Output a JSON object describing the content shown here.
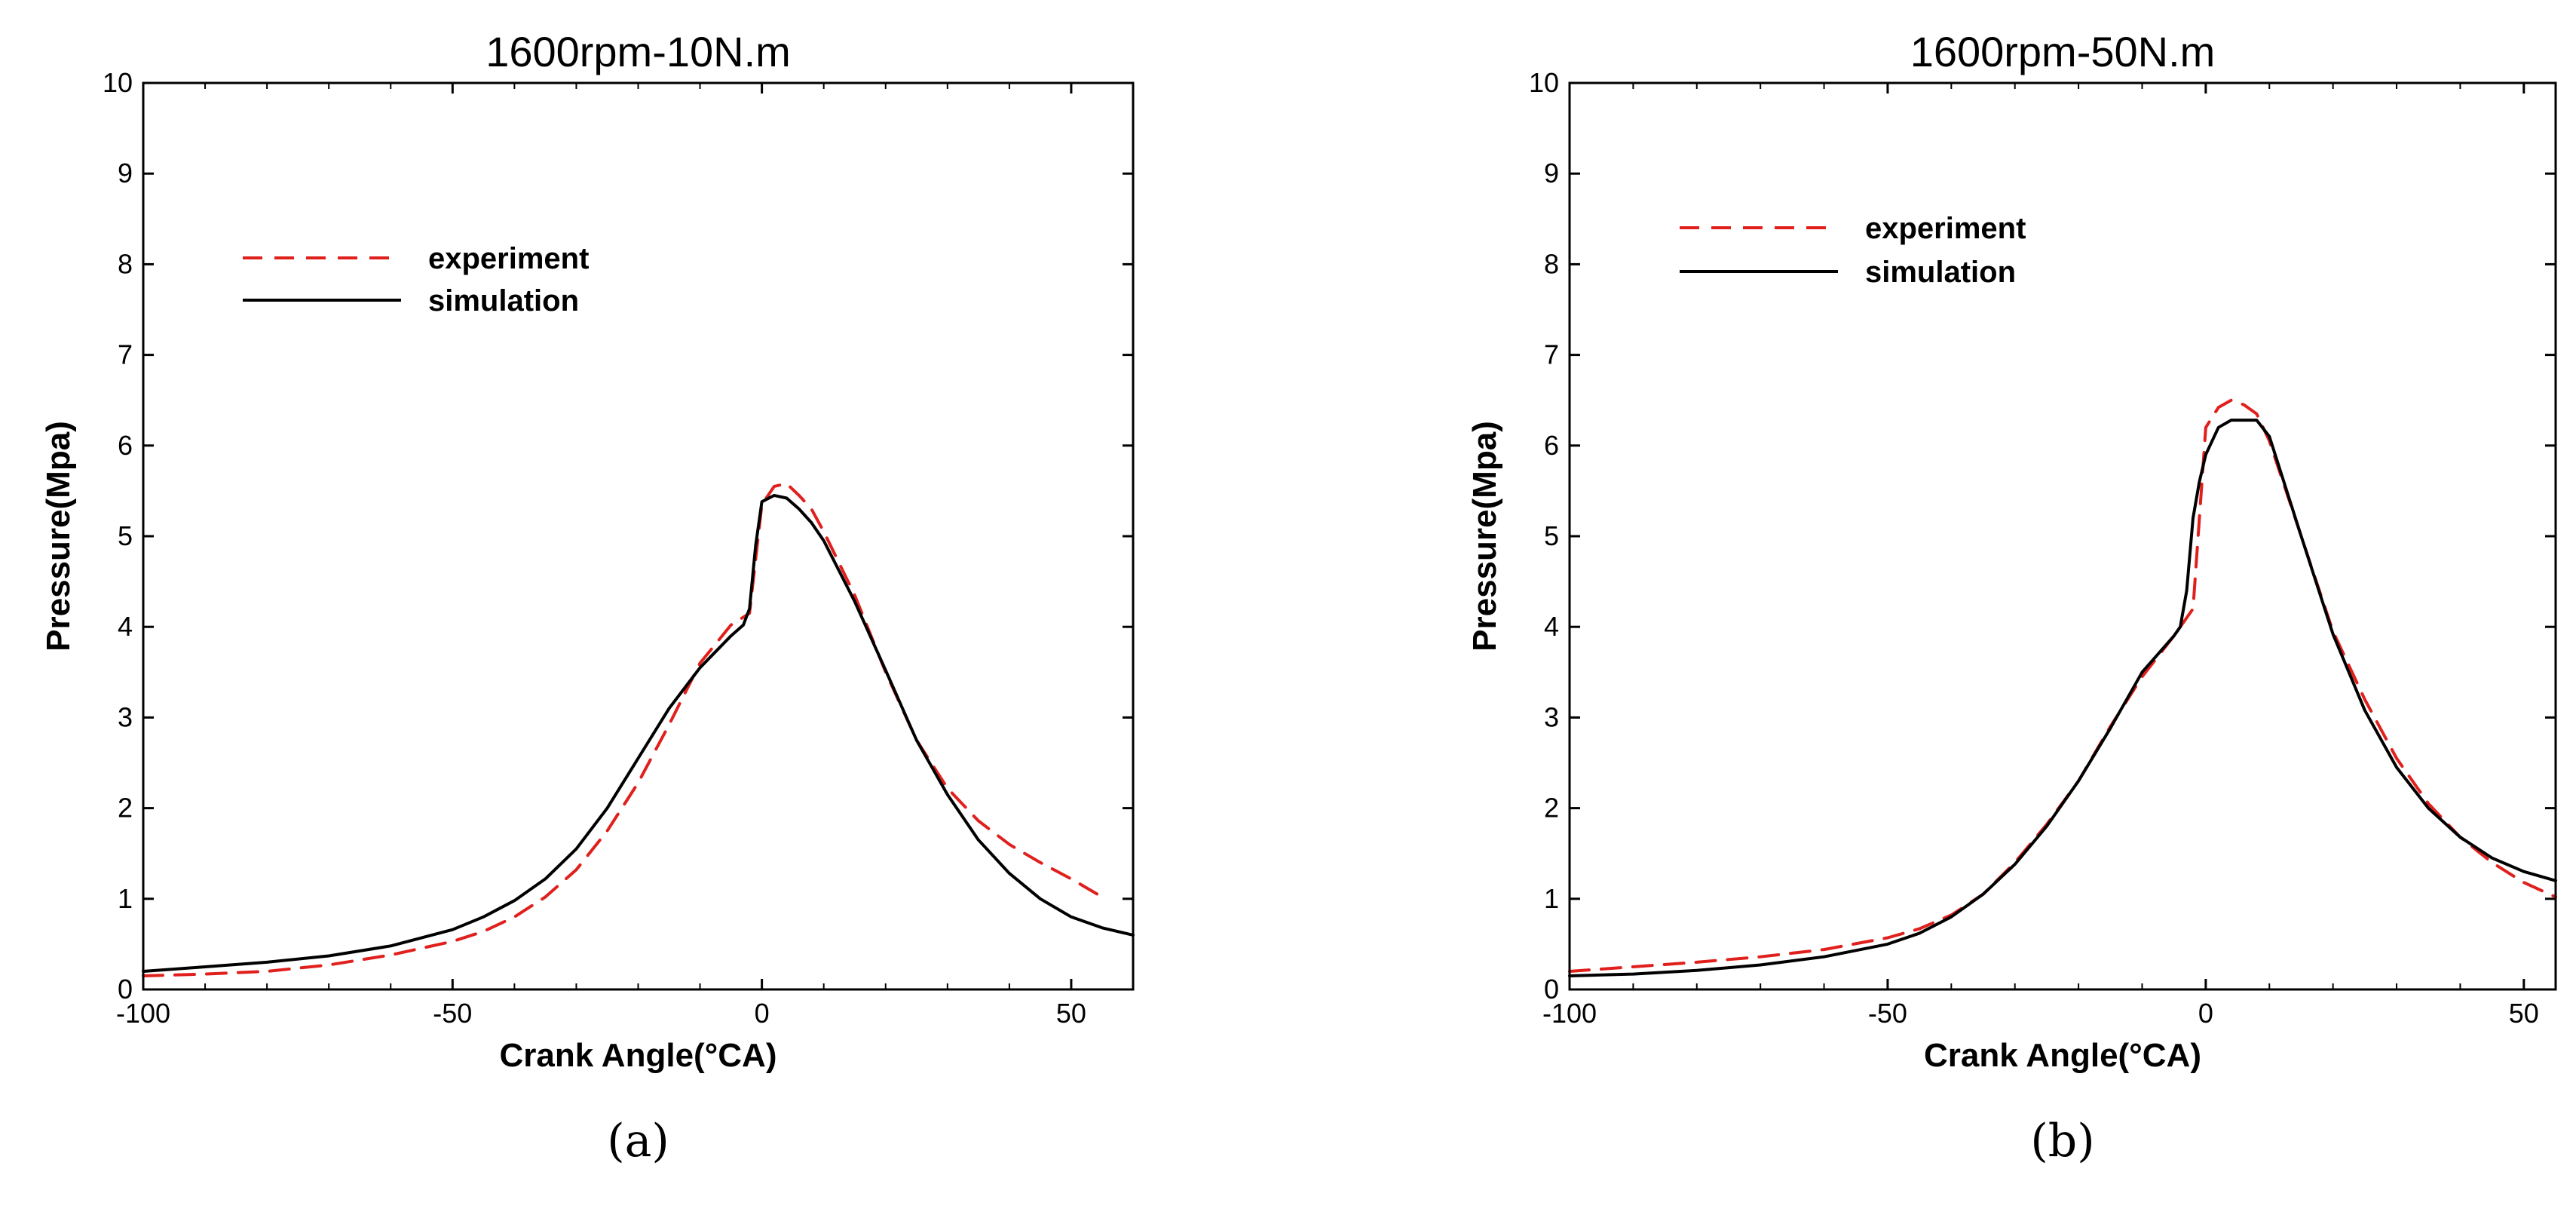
{
  "chart_data": [
    {
      "type": "line",
      "title": "1600rpm-10N.m",
      "caption": "(a)",
      "xlabel": "Crank Angle(°CA)",
      "ylabel": "Pressure(Mpa)",
      "xlim": [
        -100,
        60
      ],
      "ylim": [
        0,
        10
      ],
      "xticks": [
        -100,
        -50,
        0,
        50
      ],
      "yticks": [
        0,
        1,
        2,
        3,
        4,
        5,
        6,
        7,
        8,
        9,
        10
      ],
      "legend_position": "upper-left",
      "series": [
        {
          "name": "experiment",
          "color": "#e0201c",
          "style": "dashed",
          "x": [
            -100,
            -90,
            -80,
            -70,
            -60,
            -50,
            -45,
            -40,
            -35,
            -30,
            -25,
            -20,
            -15,
            -10,
            -5,
            -2,
            0,
            2,
            4,
            6,
            8,
            10,
            15,
            20,
            25,
            30,
            35,
            40,
            45,
            50,
            55
          ],
          "y": [
            0.15,
            0.17,
            0.2,
            0.27,
            0.38,
            0.53,
            0.64,
            0.8,
            1.02,
            1.32,
            1.75,
            2.28,
            2.92,
            3.6,
            4.02,
            4.15,
            5.35,
            5.55,
            5.58,
            5.45,
            5.3,
            5.05,
            4.35,
            3.5,
            2.75,
            2.22,
            1.86,
            1.6,
            1.4,
            1.22,
            1.02
          ]
        },
        {
          "name": "simulation",
          "color": "#000000",
          "style": "solid",
          "x": [
            -100,
            -90,
            -80,
            -70,
            -60,
            -50,
            -45,
            -40,
            -35,
            -30,
            -25,
            -20,
            -15,
            -10,
            -5,
            -3,
            -2,
            -1,
            0,
            2,
            4,
            6,
            8,
            10,
            15,
            20,
            25,
            30,
            35,
            40,
            45,
            50,
            55,
            60
          ],
          "y": [
            0.2,
            0.25,
            0.3,
            0.37,
            0.48,
            0.66,
            0.8,
            0.98,
            1.22,
            1.55,
            2.0,
            2.55,
            3.1,
            3.55,
            3.9,
            4.02,
            4.2,
            4.9,
            5.38,
            5.45,
            5.42,
            5.3,
            5.15,
            4.95,
            4.28,
            3.52,
            2.75,
            2.15,
            1.65,
            1.28,
            1.0,
            0.8,
            0.68,
            0.6
          ]
        }
      ]
    },
    {
      "type": "line",
      "title": "1600rpm-50N.m",
      "caption": "(b)",
      "xlabel": "Crank Angle(°CA)",
      "ylabel": "Pressure(Mpa)",
      "xlim": [
        -100,
        55
      ],
      "ylim": [
        0,
        10
      ],
      "xticks": [
        -100,
        -50,
        0,
        50
      ],
      "yticks": [
        0,
        1,
        2,
        3,
        4,
        5,
        6,
        7,
        8,
        9,
        10
      ],
      "legend_position": "upper-left",
      "series": [
        {
          "name": "experiment",
          "color": "#e0201c",
          "style": "dashed",
          "x": [
            -100,
            -90,
            -80,
            -70,
            -60,
            -50,
            -45,
            -40,
            -35,
            -30,
            -25,
            -20,
            -15,
            -10,
            -5,
            -2,
            0,
            2,
            4,
            6,
            8,
            10,
            15,
            20,
            25,
            30,
            35,
            40,
            45,
            50,
            55
          ],
          "y": [
            0.2,
            0.25,
            0.3,
            0.36,
            0.44,
            0.57,
            0.67,
            0.82,
            1.05,
            1.4,
            1.82,
            2.3,
            2.9,
            3.45,
            3.9,
            4.2,
            6.2,
            6.42,
            6.5,
            6.45,
            6.35,
            6.05,
            5.0,
            3.95,
            3.2,
            2.55,
            2.05,
            1.68,
            1.4,
            1.18,
            1.02
          ]
        },
        {
          "name": "simulation",
          "color": "#000000",
          "style": "solid",
          "x": [
            -100,
            -90,
            -80,
            -70,
            -60,
            -50,
            -45,
            -40,
            -35,
            -30,
            -25,
            -20,
            -15,
            -10,
            -5,
            -4,
            -3,
            -2,
            -1,
            0,
            2,
            4,
            6,
            8,
            10,
            15,
            20,
            25,
            30,
            35,
            40,
            45,
            50,
            55
          ],
          "y": [
            0.15,
            0.17,
            0.21,
            0.27,
            0.36,
            0.5,
            0.62,
            0.8,
            1.05,
            1.38,
            1.8,
            2.3,
            2.88,
            3.5,
            3.9,
            4.0,
            4.4,
            5.2,
            5.6,
            5.9,
            6.2,
            6.28,
            6.28,
            6.28,
            6.1,
            5.0,
            3.92,
            3.08,
            2.45,
            2.0,
            1.68,
            1.45,
            1.3,
            1.2
          ]
        }
      ]
    }
  ]
}
